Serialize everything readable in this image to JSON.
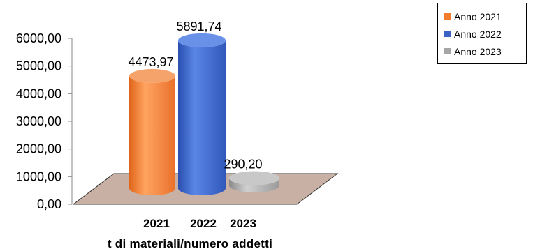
{
  "chart_data": {
    "type": "bar",
    "categories": [
      "2021",
      "2022",
      "2023"
    ],
    "series": [
      {
        "name": "Anno 2021",
        "values": [
          4473.97,
          null,
          null
        ],
        "label": "4473,97",
        "color": "#f07c2c"
      },
      {
        "name": "Anno 2022",
        "values": [
          null,
          5891.74,
          null
        ],
        "label": "5891,74",
        "color": "#3b63c4"
      },
      {
        "name": "Anno 2023",
        "values": [
          null,
          null,
          290.2
        ],
        "label": "290,20",
        "color": "#a6a6a6"
      }
    ],
    "title": "",
    "xlabel": "t di materiali/numero addetti",
    "ylabel": "",
    "ylim": [
      0,
      6000
    ],
    "yticks": [
      "0,00",
      "1000,00",
      "2000,00",
      "3000,00",
      "4000,00",
      "5000,00",
      "6000,00"
    ],
    "grid": false,
    "legend": "top-right",
    "floor_color": "#c9b0a4"
  }
}
